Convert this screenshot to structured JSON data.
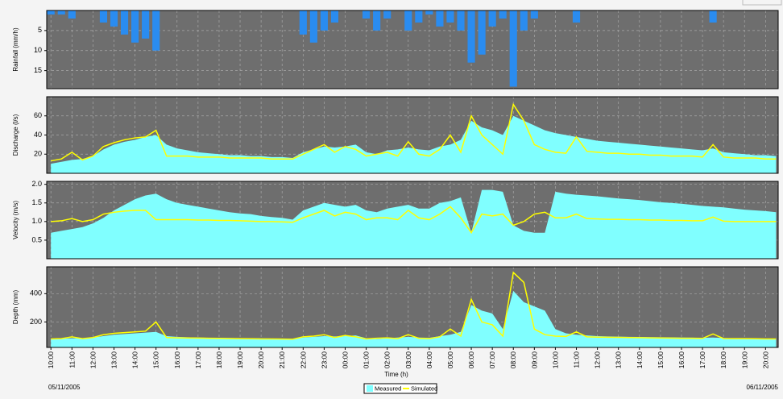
{
  "chart_data": [
    {
      "type": "bar",
      "ylabel": "Rainfall (mm/h)",
      "color": "#2a8cf0",
      "inverted": true,
      "xlim": [
        9.8,
        44.6
      ],
      "ylim": [
        0,
        19.5
      ],
      "yticks": [
        5,
        10,
        15
      ],
      "x": [
        10,
        10.5,
        11,
        11.5,
        12,
        12.5,
        13,
        13.5,
        14,
        14.5,
        15,
        15.5,
        16,
        16.5,
        17,
        17.5,
        18,
        18.5,
        19,
        19.5,
        20,
        20.5,
        21,
        21.5,
        22,
        22.5,
        23,
        23.5,
        24,
        24.5,
        25,
        25.5,
        26,
        26.5,
        27,
        27.5,
        28,
        28.5,
        29,
        29.5,
        30,
        30.5,
        31,
        31.5,
        32,
        32.5,
        33,
        33.5,
        34,
        34.5,
        35,
        35.5,
        36,
        36.5,
        37,
        37.5,
        38,
        38.5,
        39,
        39.5,
        40,
        40.5,
        41,
        41.5,
        42,
        42.5,
        43,
        43.5,
        44,
        44.5
      ],
      "values": [
        1,
        1,
        2,
        0,
        0,
        3,
        4,
        6,
        8,
        7,
        10,
        0,
        0,
        0,
        0,
        0,
        0,
        0,
        0,
        0,
        0,
        0,
        0,
        0,
        6,
        8,
        5,
        3,
        0,
        0,
        2,
        5,
        2,
        0,
        5,
        3,
        1,
        4,
        3,
        5,
        13,
        11,
        4,
        2,
        19,
        5,
        2,
        0,
        0,
        0,
        3,
        0,
        0,
        0,
        0,
        0,
        0,
        0,
        0,
        0,
        0,
        0,
        0,
        3,
        0,
        0,
        0,
        0,
        0,
        0
      ]
    },
    {
      "type": "line",
      "ylabel": "Discharge (l/s)",
      "xlim": [
        9.8,
        44.6
      ],
      "ylim": [
        0,
        80
      ],
      "yticks": [
        20,
        40,
        60
      ],
      "x": [
        10,
        10.5,
        11,
        11.5,
        12,
        12.5,
        13,
        13.5,
        14,
        14.5,
        15,
        15.5,
        16,
        16.5,
        17,
        17.5,
        18,
        18.5,
        19,
        19.5,
        20,
        20.5,
        21,
        21.5,
        22,
        22.5,
        23,
        23.5,
        24,
        24.5,
        25,
        25.5,
        26,
        26.5,
        27,
        27.5,
        28,
        28.5,
        29,
        29.5,
        30,
        30.5,
        31,
        31.5,
        32,
        32.5,
        33,
        33.5,
        34,
        34.5,
        35,
        35.5,
        36,
        36.5,
        37,
        37.5,
        38,
        38.5,
        39,
        39.5,
        40,
        40.5,
        41,
        41.5,
        42,
        42.5,
        43,
        43.5,
        44,
        44.5
      ],
      "series": [
        {
          "color": "#80ffff",
          "fill": true,
          "values": [
            10,
            12,
            14,
            15,
            18,
            25,
            30,
            33,
            35,
            38,
            40,
            30,
            26,
            24,
            22,
            21,
            20,
            19,
            19,
            18,
            18,
            17,
            17,
            16,
            22,
            25,
            28,
            27,
            28,
            30,
            22,
            20,
            24,
            25,
            27,
            25,
            24,
            28,
            30,
            35,
            55,
            48,
            45,
            40,
            60,
            55,
            50,
            45,
            42,
            40,
            38,
            36,
            34,
            33,
            32,
            31,
            30,
            29,
            28,
            27,
            26,
            25,
            24,
            26,
            22,
            21,
            20,
            19,
            19,
            18
          ]
        },
        {
          "color": "#ffff00",
          "fill": false,
          "values": [
            13,
            15,
            22,
            14,
            18,
            28,
            32,
            35,
            37,
            38,
            45,
            18,
            18,
            18,
            17,
            17,
            17,
            16,
            16,
            16,
            16,
            15,
            15,
            15,
            20,
            25,
            30,
            22,
            28,
            25,
            18,
            20,
            22,
            18,
            33,
            20,
            18,
            25,
            40,
            22,
            60,
            40,
            30,
            20,
            72,
            55,
            30,
            25,
            22,
            21,
            38,
            23,
            22,
            21,
            21,
            20,
            20,
            19,
            19,
            18,
            18,
            18,
            17,
            30,
            17,
            16,
            16,
            16,
            15,
            15
          ]
        }
      ]
    },
    {
      "type": "line",
      "ylabel": "Velocity (m/s)",
      "xlim": [
        9.8,
        44.6
      ],
      "ylim": [
        0,
        2.08
      ],
      "yticks": [
        0.5,
        {
          "value": 1,
          "label": "1.0"
        },
        1.5,
        {
          "value": 2,
          "label": "2.0"
        }
      ],
      "x": [
        10,
        10.5,
        11,
        11.5,
        12,
        12.5,
        13,
        13.5,
        14,
        14.5,
        15,
        15.5,
        16,
        16.5,
        17,
        17.5,
        18,
        18.5,
        19,
        19.5,
        20,
        20.5,
        21,
        21.5,
        22,
        22.5,
        23,
        23.5,
        24,
        24.5,
        25,
        25.5,
        26,
        26.5,
        27,
        27.5,
        28,
        28.5,
        29,
        29.5,
        30,
        30.5,
        31,
        31.5,
        32,
        32.5,
        33,
        33.5,
        34,
        34.5,
        35,
        35.5,
        36,
        36.5,
        37,
        37.5,
        38,
        38.5,
        39,
        39.5,
        40,
        40.5,
        41,
        41.5,
        42,
        42.5,
        43,
        43.5,
        44,
        44.5
      ],
      "series": [
        {
          "color": "#80ffff",
          "fill": true,
          "values": [
            0.7,
            0.75,
            0.8,
            0.85,
            0.95,
            1.1,
            1.3,
            1.45,
            1.6,
            1.7,
            1.75,
            1.6,
            1.5,
            1.45,
            1.4,
            1.35,
            1.3,
            1.25,
            1.22,
            1.2,
            1.15,
            1.12,
            1.1,
            1.05,
            1.3,
            1.4,
            1.5,
            1.45,
            1.4,
            1.45,
            1.3,
            1.25,
            1.35,
            1.4,
            1.45,
            1.35,
            1.35,
            1.5,
            1.55,
            1.65,
            0.7,
            1.85,
            1.85,
            1.8,
            0.9,
            0.75,
            0.7,
            0.7,
            1.8,
            1.75,
            1.72,
            1.7,
            1.68,
            1.65,
            1.62,
            1.6,
            1.58,
            1.55,
            1.52,
            1.5,
            1.48,
            1.45,
            1.42,
            1.4,
            1.38,
            1.35,
            1.32,
            1.3,
            1.28,
            1.25
          ]
        },
        {
          "color": "#ffff00",
          "fill": false,
          "values": [
            1,
            1.02,
            1.08,
            1,
            1.05,
            1.2,
            1.25,
            1.28,
            1.3,
            1.3,
            1.05,
            1.05,
            1.05,
            1.05,
            1.04,
            1.04,
            1.03,
            1.03,
            1.02,
            1.01,
            1,
            1,
            0.99,
            0.98,
            1.1,
            1.2,
            1.3,
            1.15,
            1.25,
            1.2,
            1.05,
            1.1,
            1.1,
            1.05,
            1.3,
            1.1,
            1.05,
            1.2,
            1.4,
            1.1,
            0.7,
            1.2,
            1.15,
            1.2,
            0.9,
            1,
            1.2,
            1.25,
            1.1,
            1.1,
            1.2,
            1.08,
            1.07,
            1.06,
            1.06,
            1.05,
            1.05,
            1.04,
            1.04,
            1.03,
            1.03,
            1.02,
            1.02,
            1.12,
            1.01,
            1,
            1,
            1,
            1,
            1
          ]
        }
      ]
    },
    {
      "type": "line",
      "ylabel": "Depth (mm)",
      "xlabel": "Time (h)",
      "annotations": [
        "05/11/2005",
        "06/11/2005"
      ],
      "xlim": [
        9.8,
        44.6
      ],
      "ylim": [
        20,
        590
      ],
      "yticks": [
        200,
        400
      ],
      "xticks": [
        {
          "value": 10,
          "label": "10:00"
        },
        {
          "value": 11,
          "label": "11:00"
        },
        {
          "value": 12,
          "label": "12:00"
        },
        {
          "value": 13,
          "label": "13:00"
        },
        {
          "value": 14,
          "label": "14:00"
        },
        {
          "value": 15,
          "label": "15:00"
        },
        {
          "value": 16,
          "label": "16:00"
        },
        {
          "value": 17,
          "label": "17:00"
        },
        {
          "value": 18,
          "label": "18:00"
        },
        {
          "value": 19,
          "label": "19:00"
        },
        {
          "value": 20,
          "label": "20:00"
        },
        {
          "value": 21,
          "label": "21:00"
        },
        {
          "value": 22,
          "label": "22:00"
        },
        {
          "value": 23,
          "label": "23:00"
        },
        {
          "value": 24,
          "label": "00:00"
        },
        {
          "value": 25,
          "label": "01:00"
        },
        {
          "value": 26,
          "label": "02:00"
        },
        {
          "value": 27,
          "label": "03:00"
        },
        {
          "value": 28,
          "label": "04:00"
        },
        {
          "value": 29,
          "label": "05:00"
        },
        {
          "value": 30,
          "label": "06:00"
        },
        {
          "value": 31,
          "label": "07:00"
        },
        {
          "value": 32,
          "label": "08:00"
        },
        {
          "value": 33,
          "label": "09:00"
        },
        {
          "value": 34,
          "label": "10:00"
        },
        {
          "value": 35,
          "label": "11:00"
        },
        {
          "value": 36,
          "label": "12:00"
        },
        {
          "value": 37,
          "label": "13:00"
        },
        {
          "value": 38,
          "label": "14:00"
        },
        {
          "value": 39,
          "label": "15:00"
        },
        {
          "value": 40,
          "label": "16:00"
        },
        {
          "value": 41,
          "label": "17:00"
        },
        {
          "value": 42,
          "label": "18:00"
        },
        {
          "value": 43,
          "label": "19:00"
        },
        {
          "value": 44,
          "label": "20:00"
        }
      ],
      "x": [
        10,
        10.5,
        11,
        11.5,
        12,
        12.5,
        13,
        13.5,
        14,
        14.5,
        15,
        15.5,
        16,
        16.5,
        17,
        17.5,
        18,
        18.5,
        19,
        19.5,
        20,
        20.5,
        21,
        21.5,
        22,
        22.5,
        23,
        23.5,
        24,
        24.5,
        25,
        25.5,
        26,
        26.5,
        27,
        27.5,
        28,
        28.5,
        29,
        29.5,
        30,
        30.5,
        31,
        31.5,
        32,
        32.5,
        33,
        33.5,
        34,
        34.5,
        35,
        35.5,
        36,
        36.5,
        37,
        37.5,
        38,
        38.5,
        39,
        39.5,
        40,
        40.5,
        41,
        41.5,
        42,
        42.5,
        43,
        43.5,
        44,
        44.5
      ],
      "series": [
        {
          "name": "Measured",
          "color": "#80ffff",
          "fill": true,
          "values": [
            80,
            82,
            85,
            85,
            90,
            100,
            110,
            115,
            120,
            125,
            130,
            100,
            95,
            92,
            90,
            88,
            87,
            86,
            85,
            85,
            84,
            83,
            82,
            80,
            90,
            95,
            100,
            98,
            100,
            105,
            85,
            80,
            85,
            90,
            95,
            90,
            88,
            100,
            110,
            130,
            320,
            280,
            260,
            150,
            420,
            340,
            310,
            280,
            150,
            120,
            110,
            105,
            100,
            98,
            96,
            95,
            94,
            93,
            92,
            91,
            90,
            89,
            88,
            90,
            86,
            85,
            84,
            83,
            82,
            81
          ]
        },
        {
          "name": "Simulated",
          "color": "#ffff00",
          "fill": false,
          "values": [
            80,
            82,
            95,
            82,
            90,
            110,
            120,
            125,
            130,
            135,
            200,
            90,
            88,
            87,
            86,
            85,
            84,
            83,
            82,
            81,
            80,
            80,
            79,
            78,
            95,
            100,
            110,
            90,
            105,
            95,
            80,
            85,
            88,
            82,
            110,
            85,
            82,
            95,
            150,
            100,
            360,
            200,
            180,
            100,
            550,
            480,
            150,
            110,
            100,
            98,
            130,
            95,
            93,
            92,
            91,
            90,
            89,
            88,
            87,
            86,
            85,
            85,
            84,
            115,
            83,
            82,
            82,
            81,
            80,
            80
          ]
        }
      ]
    }
  ]
}
